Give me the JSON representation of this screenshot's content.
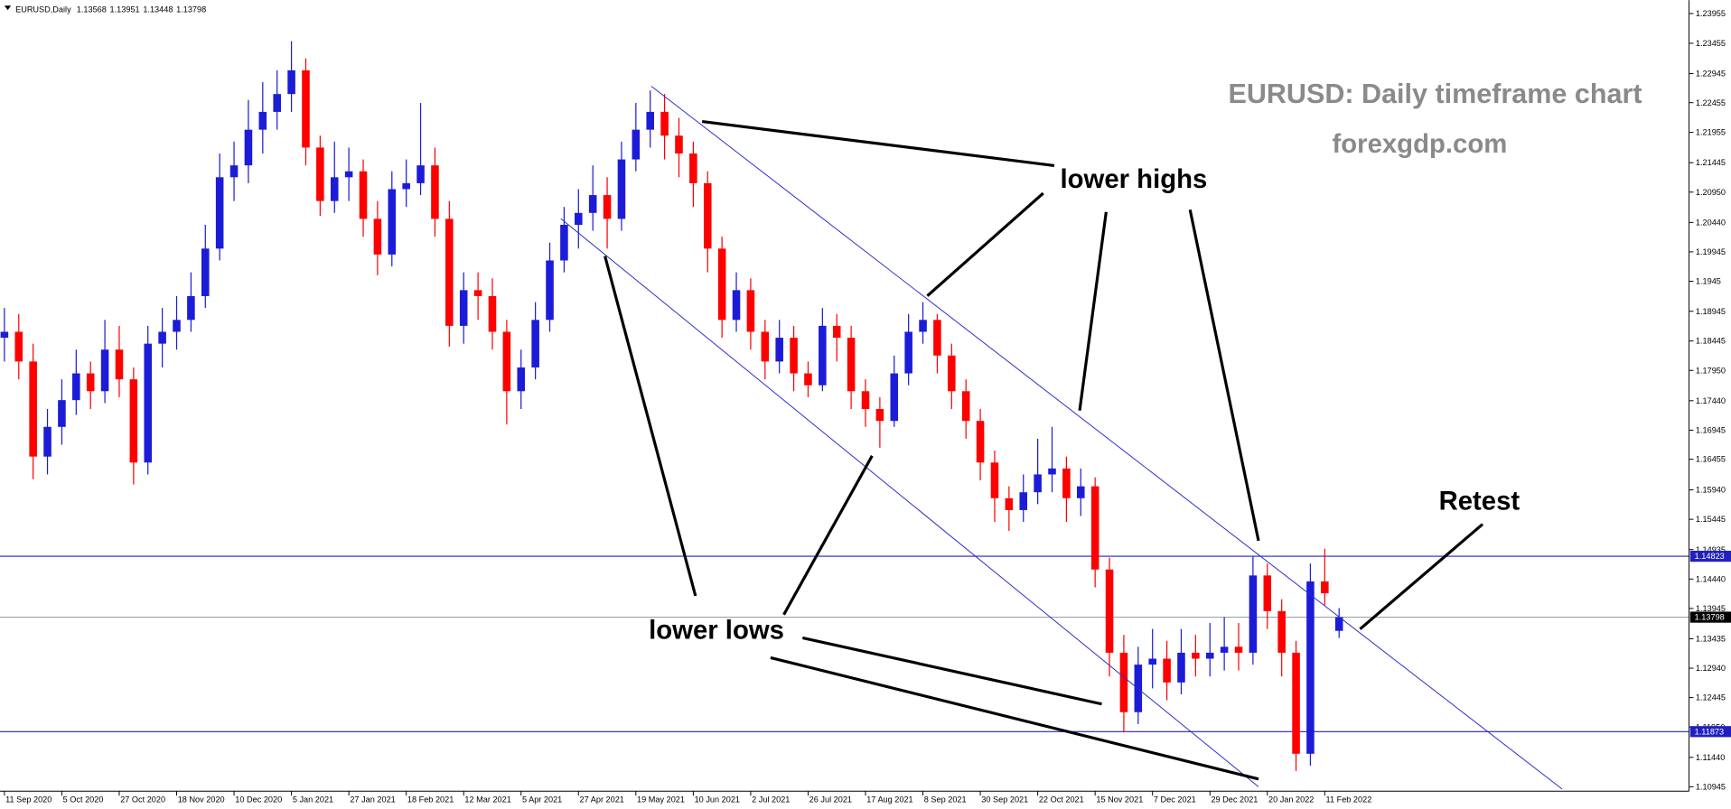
{
  "chart_data": {
    "type": "candlestick",
    "symbol": "EURUSD,Daily",
    "title": "EURUSD: Daily timeframe chart",
    "subtitle": "forexgdp.com",
    "annotations": [
      "lower highs",
      "lower lows",
      "Retest"
    ],
    "up_color": "#1c1cd8",
    "down_color": "#ff0000",
    "level_color": "#2020c0",
    "price_line_color": "#9aa3ad",
    "levels": [
      1.14823,
      1.11873
    ],
    "categories": [
      "11 Sep 2020",
      null,
      null,
      null,
      "5 Oct 2020",
      null,
      null,
      null,
      "27 Oct 2020",
      null,
      null,
      null,
      "18 Nov 2020",
      null,
      null,
      null,
      "10 Dec 2020",
      null,
      null,
      null,
      "5 Jan 2021",
      null,
      null,
      null,
      "27 Jan 2021",
      null,
      null,
      null,
      "18 Feb 2021",
      null,
      null,
      null,
      "12 Mar 2021",
      null,
      null,
      null,
      "5 Apr 2021",
      null,
      null,
      null,
      "27 Apr 2021",
      null,
      null,
      null,
      "19 May 2021",
      null,
      null,
      null,
      "10 Jun 2021",
      null,
      null,
      null,
      "2 Jul 2021",
      null,
      null,
      null,
      "26 Jul 2021",
      null,
      null,
      null,
      "17 Aug 2021",
      null,
      null,
      null,
      "8 Sep 2021",
      null,
      null,
      null,
      "30 Sep 2021",
      null,
      null,
      null,
      "22 Oct 2021",
      null,
      null,
      null,
      "15 Nov 2021",
      null,
      null,
      null,
      "7 Dec 2021",
      null,
      null,
      null,
      "29 Dec 2021",
      null,
      null,
      null,
      "20 Jan 2022",
      null,
      null,
      null,
      "11 Feb 2022",
      null
    ],
    "open": [
      1.185,
      1.186,
      1.181,
      1.165,
      1.17,
      1.1745,
      1.179,
      1.176,
      1.183,
      1.178,
      1.164,
      1.184,
      1.186,
      1.188,
      1.192,
      1.2,
      1.212,
      1.214,
      1.22,
      1.223,
      1.226,
      1.23,
      1.217,
      1.208,
      1.212,
      1.213,
      1.205,
      1.199,
      1.21,
      1.211,
      1.214,
      1.205,
      1.187,
      1.193,
      1.192,
      1.186,
      1.176,
      1.18,
      1.188,
      1.198,
      1.204,
      1.206,
      1.209,
      1.205,
      1.215,
      1.22,
      1.223,
      1.219,
      1.216,
      1.211,
      1.2,
      1.188,
      1.193,
      1.186,
      1.181,
      1.185,
      1.179,
      1.177,
      1.187,
      1.185,
      1.176,
      1.173,
      1.171,
      1.179,
      1.186,
      1.188,
      1.182,
      1.176,
      1.171,
      1.164,
      1.158,
      1.156,
      1.159,
      1.162,
      1.163,
      1.158,
      1.16,
      1.146,
      1.132,
      1.122,
      1.13,
      1.131,
      1.127,
      1.132,
      1.131,
      1.132,
      1.133,
      1.132,
      1.145,
      1.139,
      1.132,
      1.115,
      1.144,
      1.13568
    ],
    "high": [
      1.19,
      1.189,
      1.184,
      1.173,
      1.178,
      1.183,
      1.181,
      1.188,
      1.187,
      1.18,
      1.187,
      1.19,
      1.192,
      1.196,
      1.204,
      1.216,
      1.218,
      1.225,
      1.228,
      1.23,
      1.2349,
      1.232,
      1.219,
      1.218,
      1.217,
      1.215,
      1.208,
      1.213,
      1.215,
      1.2245,
      1.217,
      1.208,
      1.196,
      1.196,
      1.195,
      1.188,
      1.183,
      1.191,
      1.201,
      1.207,
      1.21,
      1.214,
      1.212,
      1.218,
      1.2245,
      1.2266,
      1.226,
      1.222,
      1.218,
      1.213,
      1.202,
      1.196,
      1.195,
      1.188,
      1.188,
      1.187,
      1.181,
      1.19,
      1.189,
      1.187,
      1.178,
      1.175,
      1.182,
      1.189,
      1.191,
      1.189,
      1.184,
      1.178,
      1.173,
      1.166,
      1.16,
      1.162,
      1.168,
      1.17,
      1.165,
      1.163,
      1.1615,
      1.148,
      1.135,
      1.133,
      1.136,
      1.134,
      1.136,
      1.135,
      1.137,
      1.138,
      1.137,
      1.1482,
      1.147,
      1.141,
      1.134,
      1.147,
      1.1495,
      1.13951
    ],
    "low": [
      1.181,
      1.178,
      1.1612,
      1.162,
      1.167,
      1.172,
      1.173,
      1.174,
      1.175,
      1.1603,
      1.162,
      1.18,
      1.183,
      1.186,
      1.19,
      1.198,
      1.208,
      1.211,
      1.216,
      1.22,
      1.223,
      1.214,
      1.2055,
      1.206,
      1.208,
      1.202,
      1.1955,
      1.197,
      1.207,
      1.209,
      1.202,
      1.1835,
      1.184,
      1.188,
      1.183,
      1.1704,
      1.173,
      1.178,
      1.186,
      1.196,
      1.2,
      1.203,
      1.2,
      1.203,
      1.213,
      1.217,
      1.215,
      1.212,
      1.207,
      1.196,
      1.185,
      1.186,
      1.183,
      1.178,
      1.179,
      1.176,
      1.175,
      1.176,
      1.181,
      1.173,
      1.17,
      1.1665,
      1.17,
      1.177,
      1.184,
      1.179,
      1.173,
      1.168,
      1.161,
      1.154,
      1.1525,
      1.154,
      1.157,
      1.159,
      1.154,
      1.155,
      1.143,
      1.128,
      1.1186,
      1.12,
      1.126,
      1.124,
      1.125,
      1.128,
      1.128,
      1.129,
      1.129,
      1.13,
      1.136,
      1.128,
      1.1121,
      1.113,
      1.14,
      1.13448
    ],
    "close": [
      1.186,
      1.181,
      1.165,
      1.17,
      1.1745,
      1.179,
      1.176,
      1.183,
      1.178,
      1.164,
      1.184,
      1.186,
      1.188,
      1.192,
      1.2,
      1.212,
      1.214,
      1.22,
      1.223,
      1.226,
      1.23,
      1.217,
      1.208,
      1.212,
      1.213,
      1.205,
      1.199,
      1.21,
      1.211,
      1.214,
      1.205,
      1.187,
      1.193,
      1.192,
      1.186,
      1.176,
      1.18,
      1.188,
      1.198,
      1.204,
      1.206,
      1.209,
      1.205,
      1.215,
      1.22,
      1.223,
      1.219,
      1.216,
      1.211,
      1.2,
      1.188,
      1.193,
      1.186,
      1.181,
      1.185,
      1.179,
      1.177,
      1.187,
      1.185,
      1.176,
      1.173,
      1.171,
      1.179,
      1.186,
      1.188,
      1.182,
      1.176,
      1.171,
      1.164,
      1.158,
      1.156,
      1.159,
      1.162,
      1.163,
      1.158,
      1.16,
      1.146,
      1.132,
      1.122,
      1.13,
      1.131,
      1.127,
      1.132,
      1.131,
      1.132,
      1.133,
      1.132,
      1.145,
      1.139,
      1.132,
      1.115,
      1.144,
      1.142,
      1.13798
    ],
    "ylim": [
      1.1087,
      1.2418
    ],
    "yticks": [
      1.23955,
      1.23455,
      1.22945,
      1.22455,
      1.21955,
      1.21445,
      {
        "value": 1.2095,
        "label": "1.20950"
      },
      {
        "value": 1.2044,
        "label": "1.20440"
      },
      1.19945,
      1.1945,
      1.18945,
      1.18445,
      {
        "value": 1.1795,
        "label": "1.17950"
      },
      {
        "value": 1.1744,
        "label": "1.17440"
      },
      1.16945,
      1.16455,
      {
        "value": 1.1594,
        "label": "1.15940"
      },
      1.15445,
      1.14935,
      {
        "value": 1.1444,
        "label": "1.14440"
      },
      1.13945,
      1.13435,
      {
        "value": 1.1294,
        "label": "1.12940"
      },
      1.12445,
      {
        "value": 1.1195,
        "label": "1.11950"
      },
      {
        "value": 1.1144,
        "label": "1.11440"
      },
      1.10945
    ]
  }
}
